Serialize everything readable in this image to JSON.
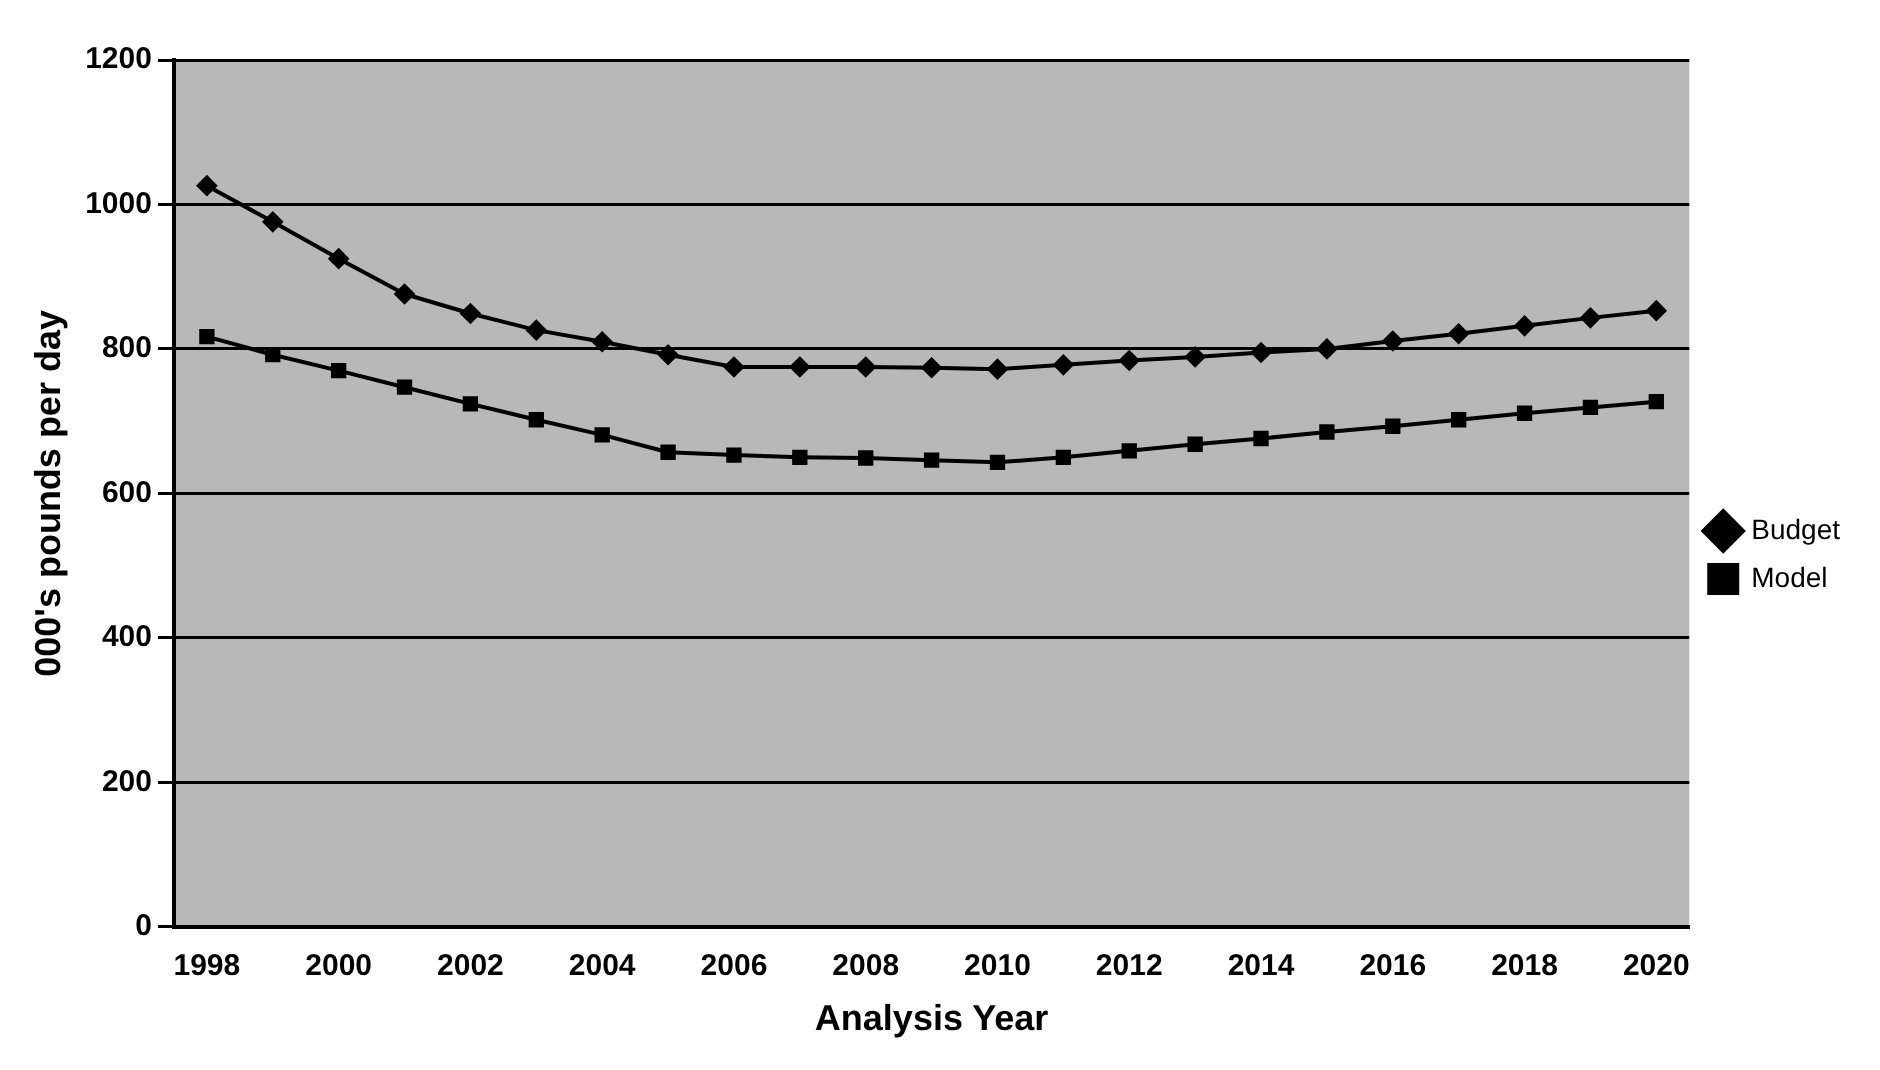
{
  "chart_data": {
    "type": "line",
    "xlabel": "Analysis Year",
    "ylabel": "000's pounds per day",
    "categories": [
      "1998",
      null,
      "2000",
      null,
      "2002",
      null,
      "2004",
      null,
      "2006",
      null,
      "2008",
      null,
      "2010",
      null,
      "2012",
      null,
      "2014",
      null,
      "2016",
      null,
      "2018",
      null,
      "2020"
    ],
    "series": [
      {
        "name": "Budget",
        "color": "#000000",
        "marker": "diamond",
        "values": [
          1026,
          976,
          925,
          876,
          849,
          826,
          810,
          792,
          775,
          775,
          775,
          774,
          772,
          778,
          784,
          789,
          795,
          800,
          811,
          821,
          832,
          843,
          853
        ]
      },
      {
        "name": "Model",
        "color": "#000000",
        "marker": "square",
        "values": [
          817,
          792,
          770,
          747,
          724,
          702,
          681,
          657,
          653,
          650,
          649,
          646,
          643,
          650,
          659,
          668,
          676,
          685,
          693,
          702,
          711,
          719,
          727
        ]
      }
    ],
    "ylim": [
      0,
      1200
    ],
    "yticks": [
      0,
      200,
      400,
      600,
      800,
      1000,
      1200
    ],
    "grid": "y",
    "legend": "right",
    "line_style": "solid"
  }
}
